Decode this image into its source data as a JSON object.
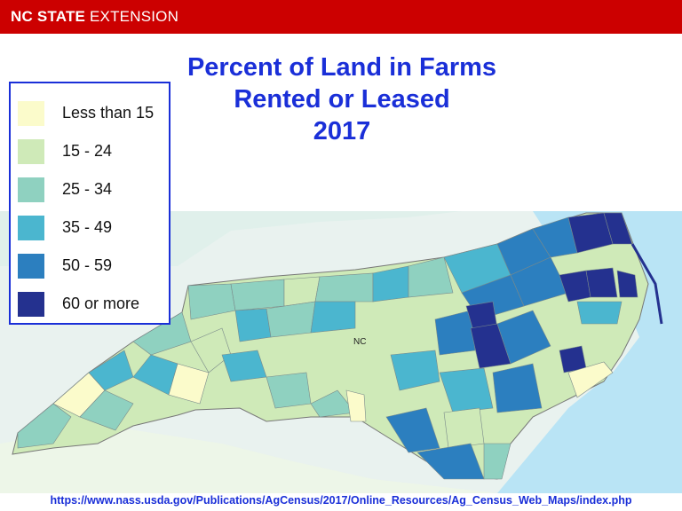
{
  "header": {
    "brand_bold": "NC STATE",
    "brand_light": "EXTENSION",
    "bar_color": "#cc0000"
  },
  "title": {
    "line1": "Percent of Land in Farms",
    "line2": "Rented or Leased",
    "line3": "2017",
    "color": "#1a2fd8"
  },
  "map": {
    "label": "NC",
    "ocean_color": "#b9e4f5",
    "land_color": "#e9f2ef"
  },
  "legend": {
    "items": [
      {
        "label": "Less than 15",
        "color": "#fbfbcb"
      },
      {
        "label": "15 - 24",
        "color": "#cfeab8"
      },
      {
        "label": "25 - 34",
        "color": "#8fd1c0"
      },
      {
        "label": "35 - 49",
        "color": "#4bb6cf"
      },
      {
        "label": "50 - 59",
        "color": "#2c7fbf"
      },
      {
        "label": "60 or more",
        "color": "#24318f"
      }
    ]
  },
  "source": {
    "url": "https://www.nass.usda.gov/Publications/AgCensus/2017/Online_Resources/Ag_Census_Web_Maps/index.php"
  }
}
